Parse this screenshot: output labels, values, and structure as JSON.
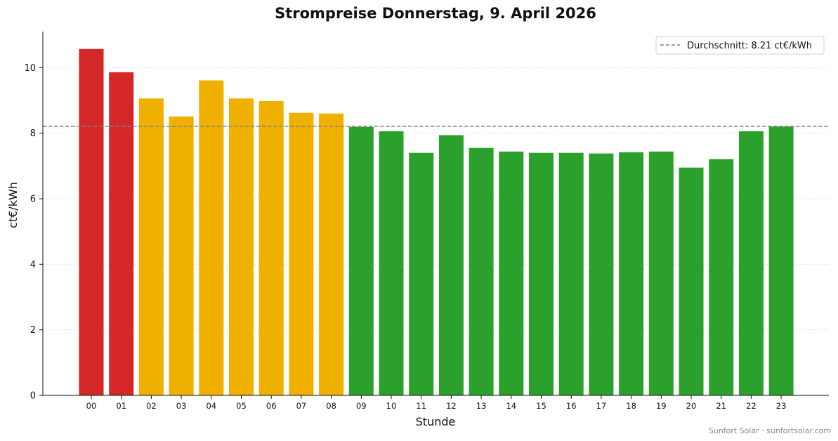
{
  "chart_data": {
    "type": "bar",
    "title": "Strompreise Donnerstag, 9. April 2026",
    "xlabel": "Stunde",
    "ylabel": "ct€/kWh",
    "ylim": [
      0,
      11.1
    ],
    "yticks": [
      "0",
      "2",
      "4",
      "6",
      "8",
      "10"
    ],
    "grid": "horizontal dotted",
    "categories": [
      "00",
      "01",
      "02",
      "03",
      "04",
      "05",
      "06",
      "07",
      "08",
      "09",
      "10",
      "11",
      "12",
      "13",
      "14",
      "15",
      "16",
      "17",
      "18",
      "19",
      "20",
      "21",
      "22",
      "23"
    ],
    "values": [
      10.57,
      9.86,
      9.06,
      8.51,
      9.61,
      9.06,
      8.98,
      8.62,
      8.6,
      8.19,
      8.06,
      7.4,
      7.94,
      7.55,
      7.44,
      7.4,
      7.4,
      7.38,
      7.42,
      7.44,
      6.95,
      7.21,
      8.06,
      8.2
    ],
    "bar_colors": [
      "#d62728",
      "#d62728",
      "#f0b000",
      "#f0b000",
      "#f0b000",
      "#f0b000",
      "#f0b000",
      "#f0b000",
      "#f0b000",
      "#2ca02c",
      "#2ca02c",
      "#2ca02c",
      "#2ca02c",
      "#2ca02c",
      "#2ca02c",
      "#2ca02c",
      "#2ca02c",
      "#2ca02c",
      "#2ca02c",
      "#2ca02c",
      "#2ca02c",
      "#2ca02c",
      "#2ca02c",
      "#2ca02c"
    ],
    "average": 8.21,
    "legend": {
      "label": "Durchschnitt: 8.21 ct€/kWh",
      "placement": "top-right"
    }
  },
  "colors": {
    "high": "#d62728",
    "medium": "#f0b000",
    "low": "#2ca02c",
    "average_line": "#808080"
  },
  "watermark": "Sunfort Solar · sunfortsolar.com"
}
